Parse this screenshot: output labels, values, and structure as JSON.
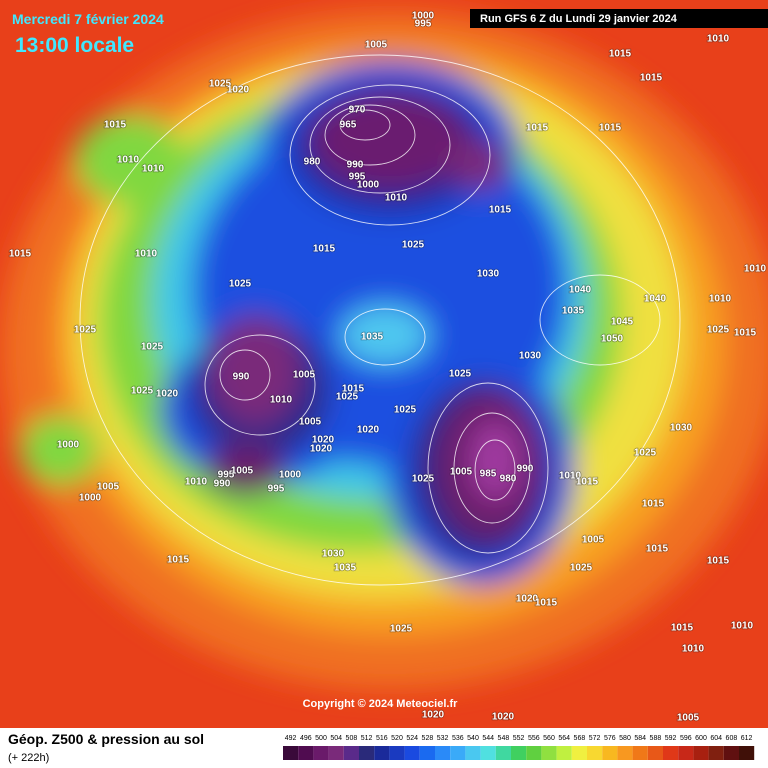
{
  "header": {
    "date": "Mercredi 7 février 2024",
    "time": "13:00 locale",
    "run": "Run GFS 6 Z du Lundi 29 janvier 2024"
  },
  "map": {
    "copyright": "Copyright © 2024 Meteociel.fr",
    "pressure_labels": [
      "1000",
      "995",
      "1005",
      "1015",
      "1010",
      "1015",
      "1025",
      "1020",
      "1015",
      "970",
      "965",
      "980",
      "990",
      "995",
      "1000",
      "1010",
      "1015",
      "1015",
      "1010",
      "1010",
      "1010",
      "1015",
      "1025",
      "1015",
      "1015",
      "1030",
      "1040",
      "1040",
      "1010",
      "1010",
      "1025",
      "1025",
      "1025",
      "1035",
      "1035",
      "1045",
      "1050",
      "1025",
      "1015",
      "1030",
      "990",
      "1005",
      "1010",
      "1015",
      "1025",
      "1025",
      "1025",
      "1020",
      "1005",
      "1020",
      "1020",
      "1025",
      "1020",
      "1000",
      "995",
      "990",
      "1005",
      "1000",
      "995",
      "1010",
      "1005",
      "1000",
      "1025",
      "1005",
      "985",
      "980",
      "990",
      "1010",
      "1015",
      "1030",
      "1025",
      "1015",
      "1005",
      "1015",
      "1015",
      "1025",
      "1030",
      "1035",
      "1015",
      "1020",
      "1015",
      "1025",
      "1015",
      "1010",
      "1010",
      "1005",
      "1020",
      "1020"
    ]
  },
  "footer": {
    "title": "Géop. Z500 & pression au sol",
    "subtitle": "(+ 222h)"
  },
  "colorbar": {
    "values": [
      492,
      496,
      500,
      504,
      508,
      512,
      516,
      520,
      524,
      528,
      532,
      536,
      540,
      544,
      548,
      552,
      556,
      560,
      564,
      568,
      572,
      576,
      580,
      584,
      588,
      592,
      596,
      600,
      604,
      608,
      612
    ],
    "colors": [
      "#3a0a3a",
      "#500c50",
      "#6a1a6a",
      "#7a2a7a",
      "#5a2a8a",
      "#2a2a7a",
      "#1a2a9a",
      "#1a3ac0",
      "#1a4ae0",
      "#1a6af0",
      "#2a8af8",
      "#3aaaf8",
      "#4ac8f0",
      "#50e0e0",
      "#40d8a0",
      "#40d060",
      "#60d040",
      "#90e040",
      "#c0f040",
      "#f0f040",
      "#f8d830",
      "#f8b820",
      "#f89820",
      "#f07818",
      "#e85818",
      "#e03818",
      "#c82818",
      "#a82010",
      "#802010",
      "#601010",
      "#401008"
    ]
  }
}
